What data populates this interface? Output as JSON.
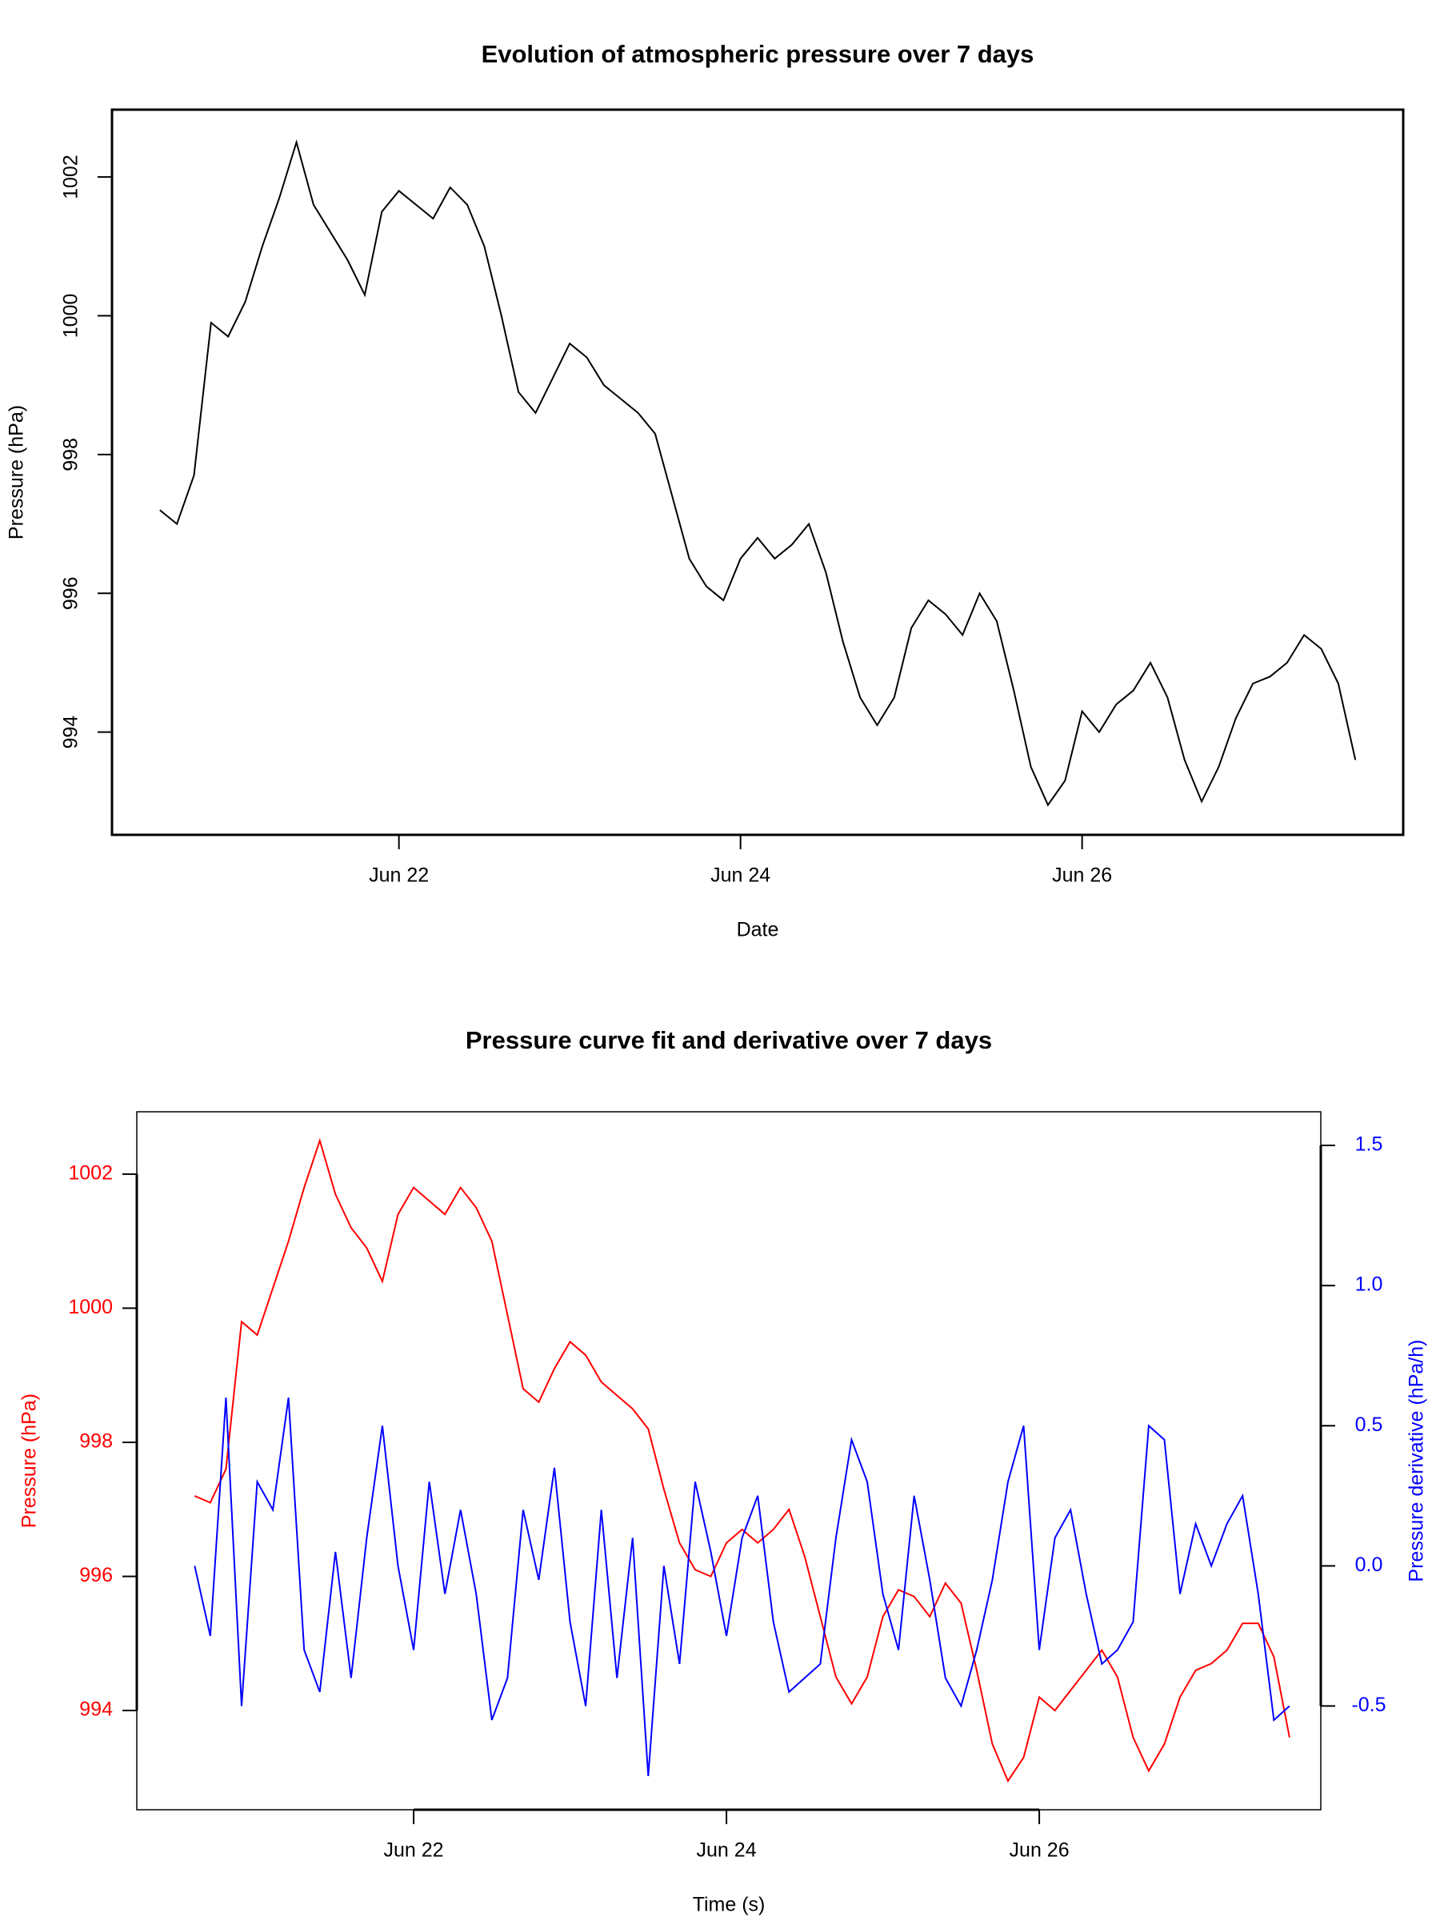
{
  "chart_data": [
    {
      "type": "line",
      "title": "Evolution of atmospheric pressure over 7 days",
      "xlabel": "Date",
      "ylabel": "Pressure (hPa)",
      "x": [
        20.6,
        20.7,
        20.8,
        20.9,
        21.0,
        21.1,
        21.2,
        21.3,
        21.4,
        21.5,
        21.6,
        21.7,
        21.8,
        21.9,
        22.0,
        22.1,
        22.2,
        22.3,
        22.4,
        22.5,
        22.6,
        22.7,
        22.8,
        22.9,
        23.0,
        23.1,
        23.2,
        23.3,
        23.4,
        23.5,
        23.6,
        23.7,
        23.8,
        23.9,
        24.0,
        24.1,
        24.2,
        24.3,
        24.4,
        24.5,
        24.6,
        24.7,
        24.8,
        24.9,
        25.0,
        25.1,
        25.2,
        25.3,
        25.4,
        25.5,
        25.6,
        25.7,
        25.8,
        25.9,
        26.0,
        26.1,
        26.2,
        26.3,
        26.4,
        26.5,
        26.6,
        26.7,
        26.8,
        26.9,
        27.0,
        27.1,
        27.2,
        27.3,
        27.4,
        27.5,
        27.6
      ],
      "series": [
        {
          "color": "#000000",
          "values": [
            997.2,
            997.0,
            997.7,
            999.9,
            999.7,
            1000.2,
            1001.0,
            1001.7,
            1002.5,
            1001.6,
            1001.2,
            1000.8,
            1000.3,
            1001.5,
            1001.8,
            1001.6,
            1001.4,
            1001.85,
            1001.6,
            1001.0,
            1000.0,
            998.9,
            998.6,
            999.1,
            999.6,
            999.4,
            999.0,
            998.8,
            998.6,
            998.3,
            997.4,
            996.5,
            996.1,
            995.9,
            996.5,
            996.8,
            996.5,
            996.7,
            997.0,
            996.3,
            995.3,
            994.5,
            994.1,
            994.5,
            995.5,
            995.9,
            995.7,
            995.4,
            996.0,
            995.6,
            994.6,
            993.5,
            992.95,
            993.3,
            994.3,
            994.0,
            994.4,
            994.6,
            995.0,
            994.5,
            993.6,
            993.0,
            993.5,
            994.2,
            994.7,
            994.8,
            995.0,
            995.4,
            995.2,
            994.7,
            993.6
          ]
        }
      ],
      "xlim": [
        20.32,
        27.88
      ],
      "ylim": [
        992.52,
        1002.97
      ],
      "xticks": [
        {
          "value": 22,
          "label": "Jun 22"
        },
        {
          "value": 24,
          "label": "Jun 24"
        },
        {
          "value": 26,
          "label": "Jun 26"
        }
      ],
      "yticks": [
        994,
        996,
        998,
        1000,
        1002
      ]
    },
    {
      "type": "line",
      "title": "Pressure curve fit and derivative over 7 days",
      "xlabel": "Time (s)",
      "ylabel": "Pressure (hPa)",
      "y2label": "Pressure derivative (hPa/h)",
      "x": [
        20.6,
        20.7,
        20.8,
        20.9,
        21.0,
        21.1,
        21.2,
        21.3,
        21.4,
        21.5,
        21.6,
        21.7,
        21.8,
        21.9,
        22.0,
        22.1,
        22.2,
        22.3,
        22.4,
        22.5,
        22.6,
        22.7,
        22.8,
        22.9,
        23.0,
        23.1,
        23.2,
        23.3,
        23.4,
        23.5,
        23.6,
        23.7,
        23.8,
        23.9,
        24.0,
        24.1,
        24.2,
        24.3,
        24.4,
        24.5,
        24.6,
        24.7,
        24.8,
        24.9,
        25.0,
        25.1,
        25.2,
        25.3,
        25.4,
        25.5,
        25.6,
        25.7,
        25.8,
        25.9,
        26.0,
        26.1,
        26.2,
        26.3,
        26.4,
        26.5,
        26.6,
        26.7,
        26.8,
        26.9,
        27.0,
        27.1,
        27.2,
        27.3,
        27.4,
        27.5,
        27.6
      ],
      "series": [
        {
          "color": "#ff0000",
          "values": [
            997.2,
            997.1,
            997.6,
            999.8,
            999.6,
            1000.3,
            1001.0,
            1001.8,
            1002.5,
            1001.7,
            1001.2,
            1000.9,
            1000.4,
            1001.4,
            1001.8,
            1001.6,
            1001.4,
            1001.8,
            1001.5,
            1001.0,
            999.9,
            998.8,
            998.6,
            999.1,
            999.5,
            999.3,
            998.9,
            998.7,
            998.5,
            998.2,
            997.3,
            996.5,
            996.1,
            996.0,
            996.5,
            996.7,
            996.5,
            996.7,
            997.0,
            996.3,
            995.4,
            994.5,
            994.1,
            994.5,
            995.4,
            995.8,
            995.7,
            995.4,
            995.9,
            995.6,
            994.6,
            993.5,
            992.95,
            993.3,
            994.2,
            994.0,
            994.3,
            994.6,
            994.9,
            994.5,
            993.6,
            993.1,
            993.5,
            994.2,
            994.6,
            994.7,
            994.9,
            995.3,
            995.3,
            994.8,
            993.6
          ]
        },
        {
          "color": "#0000ff",
          "axis": "y2",
          "values": [
            0.0,
            -0.25,
            0.6,
            -0.5,
            0.3,
            0.2,
            0.6,
            -0.3,
            -0.45,
            0.05,
            -0.4,
            0.1,
            0.5,
            0.0,
            -0.3,
            0.3,
            -0.1,
            0.2,
            -0.1,
            -0.55,
            -0.4,
            0.2,
            -0.05,
            0.35,
            -0.2,
            -0.5,
            0.2,
            -0.4,
            0.1,
            -0.75,
            0.0,
            -0.35,
            0.3,
            0.05,
            -0.25,
            0.1,
            0.25,
            -0.2,
            -0.45,
            -0.4,
            -0.35,
            0.1,
            0.45,
            0.3,
            -0.1,
            -0.3,
            0.25,
            -0.05,
            -0.4,
            -0.5,
            -0.3,
            -0.05,
            0.3,
            0.5,
            -0.3,
            0.1,
            0.2,
            -0.1,
            -0.35,
            -0.3,
            -0.2,
            0.5,
            0.45,
            -0.1,
            0.15,
            0.0,
            0.15,
            0.25,
            -0.1,
            -0.55,
            -0.5
          ]
        }
      ],
      "xlim": [
        20.23,
        27.8
      ],
      "ylim": [
        992.52,
        1002.93
      ],
      "y2lim": [
        -0.87,
        1.62
      ],
      "xticks": [
        {
          "value": 22,
          "label": "Jun 22"
        },
        {
          "value": 24,
          "label": "Jun 24"
        },
        {
          "value": 26,
          "label": "Jun 26"
        }
      ],
      "yticks": [
        994,
        996,
        998,
        1000,
        1002
      ],
      "y2ticks": [
        -0.5,
        {
          "value": 0,
          "label": "0.0"
        },
        0.5,
        {
          "value": 1,
          "label": "1.0"
        },
        1.5
      ]
    }
  ]
}
